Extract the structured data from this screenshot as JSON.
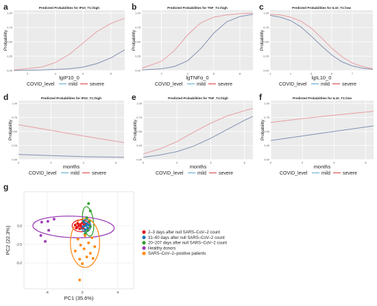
{
  "colors": {
    "mild": "#7f8fb0",
    "severe": "#e89ba0",
    "legend_mild": "#6baed6",
    "legend_severe": "#d94f4f",
    "g_2to3": "#e41a1c",
    "g_31to60": "#1f78b4",
    "g_20to207": "#33a02c",
    "g_healthy": "#9e3fb8",
    "g_sars": "#ff8c1a"
  },
  "legend_labels": {
    "title": "COVID_level",
    "mild": "mild",
    "severe": "severe"
  },
  "chart_data": [
    {
      "panel": "a",
      "type": "line",
      "title": "Predicted Probabilities for IP10_T1=high",
      "xlabel": "lgIP10_0",
      "ylabel": "Probability",
      "xlim": [
        1,
        9
      ],
      "ylim": [
        0,
        1.05
      ],
      "xticks": [
        "2",
        "4",
        "6",
        "8"
      ],
      "yticks": [
        "0.00",
        "0.25",
        "0.50",
        "0.75",
        "1.00"
      ],
      "series": [
        {
          "name": "mild",
          "x": [
            1,
            3,
            5,
            6,
            7,
            8,
            9
          ],
          "y": [
            0.0,
            0.01,
            0.03,
            0.06,
            0.12,
            0.22,
            0.36
          ]
        },
        {
          "name": "severe",
          "x": [
            1,
            3,
            4,
            5,
            6,
            7,
            8,
            9
          ],
          "y": [
            0.01,
            0.06,
            0.14,
            0.28,
            0.48,
            0.68,
            0.82,
            0.91
          ]
        }
      ]
    },
    {
      "panel": "b",
      "type": "line",
      "title": "Predicted Probabilities for TNF_T1=high",
      "xlabel": "lgTNFα_0",
      "ylabel": "Probability",
      "xlim": [
        0.5,
        9
      ],
      "ylim": [
        0,
        1.05
      ],
      "xticks": [
        "2",
        "4",
        "6",
        "8"
      ],
      "yticks": [
        "0.00",
        "0.25",
        "0.50",
        "0.75",
        "1.00"
      ],
      "series": [
        {
          "name": "mild",
          "x": [
            0.5,
            2,
            3,
            4,
            5,
            6,
            7,
            8,
            9
          ],
          "y": [
            0.01,
            0.03,
            0.07,
            0.17,
            0.38,
            0.65,
            0.85,
            0.94,
            0.98
          ]
        },
        {
          "name": "severe",
          "x": [
            0.5,
            2,
            3,
            4,
            5,
            6,
            7,
            8,
            9
          ],
          "y": [
            0.04,
            0.16,
            0.35,
            0.62,
            0.83,
            0.93,
            0.97,
            0.99,
            1.0
          ]
        }
      ]
    },
    {
      "panel": "c",
      "type": "line",
      "title": "Predicted Probabilities for IL10_T1=low",
      "xlabel": "lgIL10_0",
      "ylabel": "Probability",
      "xlim": [
        -1,
        9
      ],
      "ylim": [
        0,
        1.05
      ],
      "xticks": [
        "-1",
        "1",
        "3",
        "5",
        "7"
      ],
      "yticks": [
        "0.00",
        "0.25",
        "0.50",
        "0.75",
        "1.00"
      ],
      "series": [
        {
          "name": "mild",
          "x": [
            -1,
            0,
            1,
            2,
            3,
            4,
            5,
            6,
            7,
            8,
            9
          ],
          "y": [
            0.96,
            0.93,
            0.87,
            0.76,
            0.6,
            0.43,
            0.27,
            0.15,
            0.08,
            0.04,
            0.02
          ]
        },
        {
          "name": "severe",
          "x": [
            -1,
            0,
            1,
            2,
            3,
            4,
            5,
            6,
            7,
            8,
            9
          ],
          "y": [
            0.98,
            0.97,
            0.93,
            0.86,
            0.74,
            0.57,
            0.39,
            0.24,
            0.13,
            0.07,
            0.03
          ]
        }
      ]
    },
    {
      "panel": "d",
      "type": "line",
      "title": "Predicted Probabilities for IP10_T1=high",
      "xlabel": "months",
      "ylabel": "Probability",
      "xlim": [
        0,
        6.5
      ],
      "ylim": [
        0,
        1.05
      ],
      "xticks": [
        "0",
        "2",
        "4",
        "6"
      ],
      "yticks": [
        "0.00",
        "0.25",
        "0.50",
        "0.75",
        "1.00"
      ],
      "series": [
        {
          "name": "mild",
          "x": [
            0,
            2,
            4,
            6.5
          ],
          "y": [
            0.09,
            0.07,
            0.05,
            0.04
          ]
        },
        {
          "name": "severe",
          "x": [
            0,
            2,
            4,
            6.5
          ],
          "y": [
            0.62,
            0.52,
            0.42,
            0.3
          ]
        }
      ]
    },
    {
      "panel": "e",
      "type": "line",
      "title": "Predicted Probabilities for TNF_T1=high",
      "xlabel": "months",
      "ylabel": "Probability",
      "xlim": [
        0,
        6.5
      ],
      "ylim": [
        0,
        1.05
      ],
      "xticks": [
        "0",
        "2",
        "4",
        "6"
      ],
      "yticks": [
        "0.00",
        "0.25",
        "0.50",
        "0.75",
        "1.00"
      ],
      "series": [
        {
          "name": "mild",
          "x": [
            0,
            1,
            2,
            3,
            4,
            5,
            6,
            6.5
          ],
          "y": [
            0.04,
            0.08,
            0.14,
            0.24,
            0.38,
            0.54,
            0.7,
            0.77
          ]
        },
        {
          "name": "severe",
          "x": [
            0,
            1,
            2,
            3,
            4,
            5,
            6,
            6.5
          ],
          "y": [
            0.1,
            0.19,
            0.32,
            0.49,
            0.65,
            0.78,
            0.87,
            0.91
          ]
        }
      ]
    },
    {
      "panel": "f",
      "type": "line",
      "title": "Predicted Probabilities for IL10_T1=low",
      "xlabel": "months",
      "ylabel": "Probability",
      "xlim": [
        0,
        6.5
      ],
      "ylim": [
        0,
        1.05
      ],
      "xticks": [
        "0",
        "2",
        "4",
        "6"
      ],
      "yticks": [
        "0.00",
        "0.25",
        "0.50",
        "0.75",
        "1.00"
      ],
      "series": [
        {
          "name": "mild",
          "x": [
            0,
            2,
            4,
            6.5
          ],
          "y": [
            0.34,
            0.42,
            0.5,
            0.6
          ]
        },
        {
          "name": "severe",
          "x": [
            0,
            2,
            4,
            6.5
          ],
          "y": [
            0.66,
            0.73,
            0.79,
            0.86
          ]
        }
      ]
    },
    {
      "panel": "g",
      "type": "scatter",
      "xlabel": "PC1 (35.6%)",
      "ylabel": "PC2 (22.3%)",
      "xlim": [
        -6.6,
        5.8
      ],
      "ylim": [
        -8.5,
        4.6
      ],
      "xticks": [
        "-4",
        "0",
        "4"
      ],
      "yticks": [
        "0.0",
        "-2.5",
        "-5.0"
      ],
      "groups": [
        {
          "name": "2–3  days after null  SARS–CoV–2  count",
          "color_key": "g_2to3",
          "points": [
            [
              -0.8,
              0.1
            ],
            [
              -0.6,
              -0.2
            ],
            [
              -0.5,
              0.3
            ],
            [
              -0.3,
              -0.4
            ],
            [
              -0.2,
              0.2
            ],
            [
              -0.1,
              -0.1
            ],
            [
              0.0,
              0.4
            ],
            [
              0.1,
              -0.3
            ],
            [
              0.2,
              0.1
            ],
            [
              -0.4,
              0.0
            ],
            [
              0.3,
              0.3
            ],
            [
              -0.7,
              -0.3
            ]
          ],
          "ellipse": {
            "cx": -0.15,
            "cy": 0.0,
            "rx": 1.0,
            "ry": 0.8,
            "angle": 0
          }
        },
        {
          "name": "31–60  days after null  SARS–CoV–2  count",
          "color_key": "g_31to60",
          "points": [
            [
              0.2,
              0.5
            ],
            [
              0.4,
              0.0
            ],
            [
              0.6,
              -0.3
            ],
            [
              0.1,
              -0.1
            ],
            [
              0.5,
              0.3
            ],
            [
              0.3,
              -0.5
            ],
            [
              0.7,
              0.1
            ]
          ],
          "ellipse": {
            "cx": 0.4,
            "cy": 0.0,
            "rx": 0.55,
            "ry": 0.85,
            "angle": 0
          }
        },
        {
          "name": "20–207  days after null  SARS–CoV–2  count",
          "color_key": "g_20to207",
          "points": [
            [
              0.7,
              3.0
            ],
            [
              0.9,
              2.0
            ],
            [
              0.5,
              1.1
            ],
            [
              0.8,
              0.6
            ],
            [
              0.6,
              -0.6
            ],
            [
              0.3,
              -1.1
            ],
            [
              0.9,
              -0.1
            ]
          ],
          "ellipse": {
            "cx": 0.65,
            "cy": 0.6,
            "rx": 0.6,
            "ry": 2.0,
            "angle": -8
          }
        },
        {
          "name": "Healthy donors",
          "color_key": "g_healthy",
          "points": [
            [
              -4.6,
              0.5
            ],
            [
              -3.9,
              0.6
            ],
            [
              -3.2,
              0.9
            ],
            [
              -3.8,
              -0.6
            ],
            [
              -4.7,
              -1.3
            ],
            [
              -4.2,
              -2.1
            ]
          ],
          "ellipse": {
            "cx": -1.0,
            "cy": -0.15,
            "rx": 4.6,
            "ry": 1.45,
            "angle": 2
          }
        },
        {
          "name": "SARS–CoV–2–positive    patients",
          "color_key": "g_sars",
          "points": [
            [
              0.3,
              -1.3
            ],
            [
              1.1,
              -1.6
            ],
            [
              -0.5,
              -1.8
            ],
            [
              0.7,
              -2.3
            ],
            [
              -0.2,
              -2.6
            ],
            [
              1.4,
              -2.8
            ],
            [
              0.2,
              -3.1
            ],
            [
              -0.8,
              -3.4
            ],
            [
              0.9,
              -3.7
            ],
            [
              0.5,
              -4.2
            ],
            [
              -0.3,
              -4.5
            ],
            [
              1.2,
              -4.4
            ],
            [
              0.0,
              -5.1
            ],
            [
              -0.3,
              -7.3
            ]
          ],
          "ellipse": {
            "cx": 0.3,
            "cy": -2.3,
            "rx": 1.65,
            "ry": 3.3,
            "angle": 0
          }
        }
      ]
    }
  ]
}
